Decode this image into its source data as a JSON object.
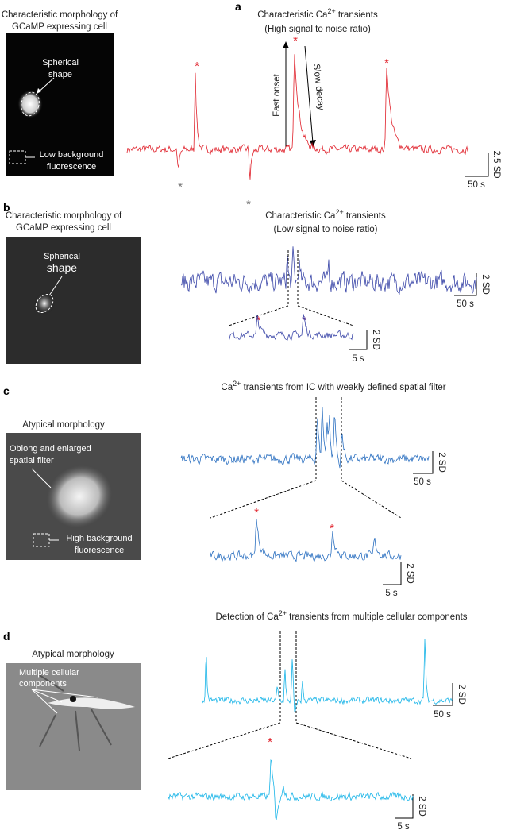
{
  "panels": [
    {
      "label": "a",
      "morph_title": [
        "Characteristic morphology of",
        "GCaMP expressing cell"
      ],
      "image_labels": [
        "Spherical",
        "shape",
        "Low background",
        "fluorescence"
      ],
      "trace_title": [
        "Characteristic Ca",
        "2+",
        " transients"
      ],
      "trace_subtitle": "(High signal to noise ratio)",
      "arrows": [
        "Fast onset",
        "Slow decay"
      ],
      "marker": "*",
      "scale": [
        "2.5 SD",
        "50 s"
      ]
    },
    {
      "label": "b",
      "morph_title": [
        "Characteristic morphology of",
        "GCaMP expressing cell"
      ],
      "image_labels": [
        "Spherical",
        "shape"
      ],
      "trace_title": [
        "Characteristic Ca",
        "2+",
        " transients"
      ],
      "trace_subtitle": "(Low signal to noise ratio)",
      "marker": "*",
      "scale": [
        "2 SD",
        "50 s"
      ],
      "zoom_scale": [
        "2 SD",
        "5 s"
      ]
    },
    {
      "label": "c",
      "morph_title": [
        "Atypical morphology"
      ],
      "image_labels": [
        "Oblong and enlarged",
        "spatial filter",
        "High background",
        "fluorescence"
      ],
      "trace_title": [
        "Ca",
        "2+",
        " transients from IC with weakly defined spatial filter"
      ],
      "marker": "*",
      "scale": [
        "2 SD",
        "50 s"
      ],
      "zoom_scale": [
        "2 SD",
        "5 s"
      ]
    },
    {
      "label": "d",
      "morph_title": [
        "Atypical morphology"
      ],
      "image_labels": [
        "Multiple cellular",
        "components"
      ],
      "trace_title": [
        "Detection of Ca",
        "2+",
        " transients from multiple cellular components"
      ],
      "marker": "*",
      "scale": [
        "2 SD",
        "50 s"
      ],
      "zoom_scale": [
        "2 SD",
        "5 s"
      ]
    }
  ]
}
